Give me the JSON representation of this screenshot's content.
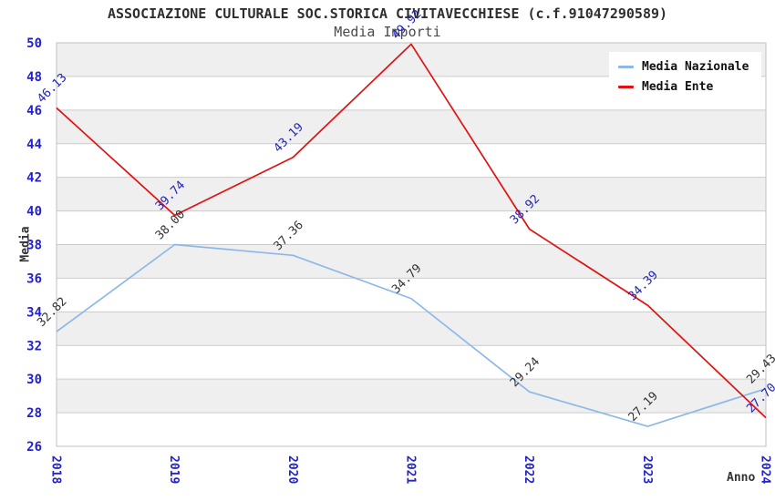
{
  "header": {
    "title": "ASSOCIAZIONE CULTURALE SOC.STORICA CIVITAVECCHIESE (c.f.91047290589)",
    "subtitle": "Media Importi"
  },
  "axes": {
    "y_label": "Media",
    "x_label": "Anno",
    "y_tick_labels": [
      "26",
      "28",
      "30",
      "32",
      "34",
      "36",
      "38",
      "40",
      "42",
      "44",
      "46",
      "48",
      "50"
    ],
    "x_tick_labels": [
      "2018",
      "2019",
      "2020",
      "2021",
      "2022",
      "2023",
      "2024"
    ]
  },
  "legend": {
    "items": [
      {
        "label": "Media Nazionale",
        "color": "#8cb8e8"
      },
      {
        "label": "Media Ente",
        "color": "#e01212"
      }
    ]
  },
  "colors": {
    "tick_label": "#2222cc",
    "gridline": "#cccccc",
    "band": "#efefef",
    "plot_border": "#c0c0c0",
    "title_text": "#2e2e2e"
  },
  "chart_data": {
    "type": "line",
    "title": "ASSOCIAZIONE CULTURALE SOC.STORICA CIVITAVECCHIESE (c.f.91047290589)",
    "subtitle": "Media Importi",
    "xlabel": "Anno",
    "ylabel": "Media",
    "x": [
      "2018",
      "2019",
      "2020",
      "2021",
      "2022",
      "2023",
      "2024"
    ],
    "series": [
      {
        "name": "Media Nazionale",
        "color": "#8cb8e8",
        "label_color": "#333333",
        "values": [
          32.82,
          38.0,
          37.36,
          34.79,
          29.24,
          27.19,
          29.43
        ]
      },
      {
        "name": "Media Ente",
        "color": "#e01212",
        "label_color": "#2222bb",
        "values": [
          46.13,
          39.74,
          43.19,
          49.92,
          38.92,
          34.39,
          27.7
        ]
      }
    ],
    "ylim": [
      26,
      50
    ],
    "ytick_step": 2,
    "grid": true,
    "legend_position": "top-right",
    "background_bands": "alternating-gray-white",
    "point_labels_rotation_deg": -45,
    "x_tick_rotation_deg": 90
  }
}
